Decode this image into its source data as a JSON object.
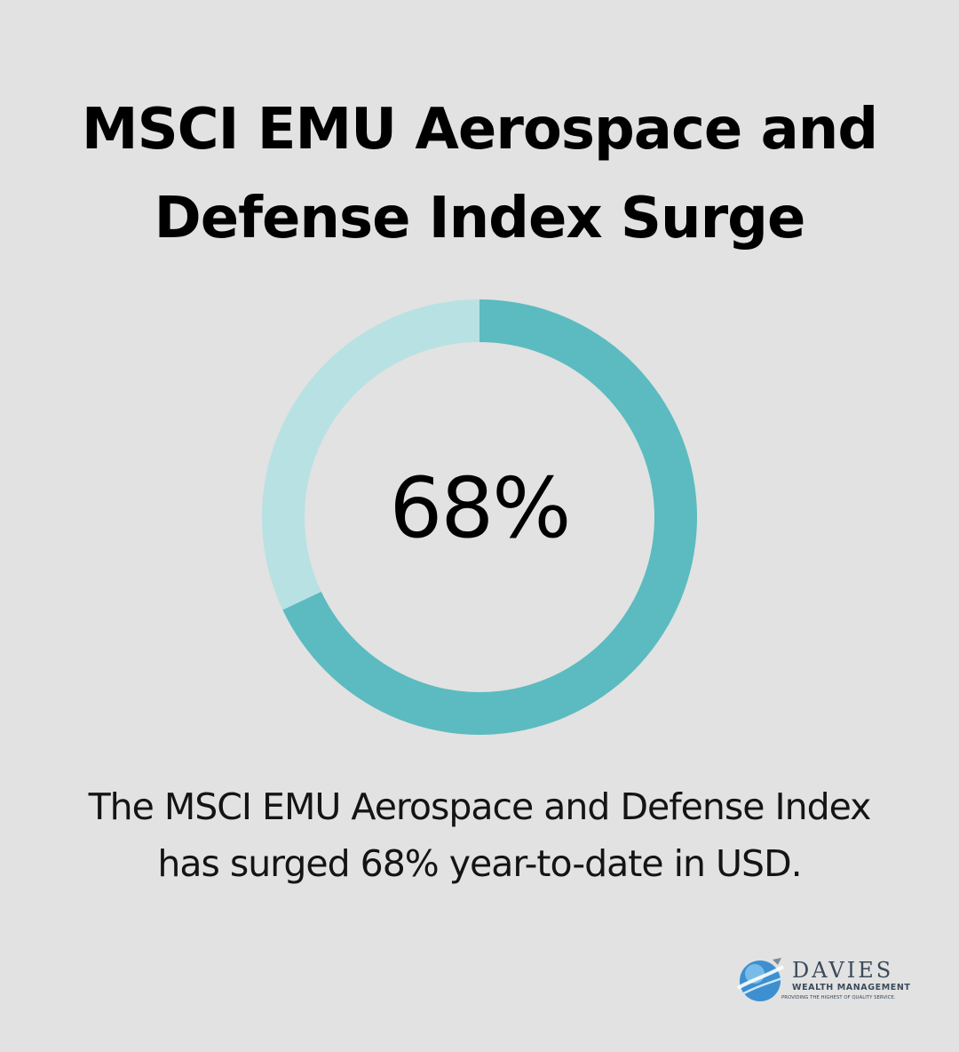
{
  "title": {
    "line1": "MSCI EMU Aerospace and",
    "line2": "Defense Index Surge"
  },
  "center_label": "68%",
  "caption": {
    "line1": "The MSCI EMU Aerospace and Defense Index",
    "line2": "has surged 68% year-to-date in USD."
  },
  "logo": {
    "icon": "globe-swirl-icon",
    "name": "DAVIES",
    "sub": "WEALTH MANAGEMENT",
    "tagline": "PROVIDING THE HIGHEST OF QUALITY SERVICE."
  },
  "colors": {
    "background": "#e1e2e1",
    "filled": "#5bbbc0",
    "remainder": "#b8e1e3",
    "text": "#000000"
  },
  "chart_data": {
    "type": "pie",
    "variant": "donut",
    "values": [
      68,
      32
    ],
    "unit": "%",
    "label": "68%"
  }
}
